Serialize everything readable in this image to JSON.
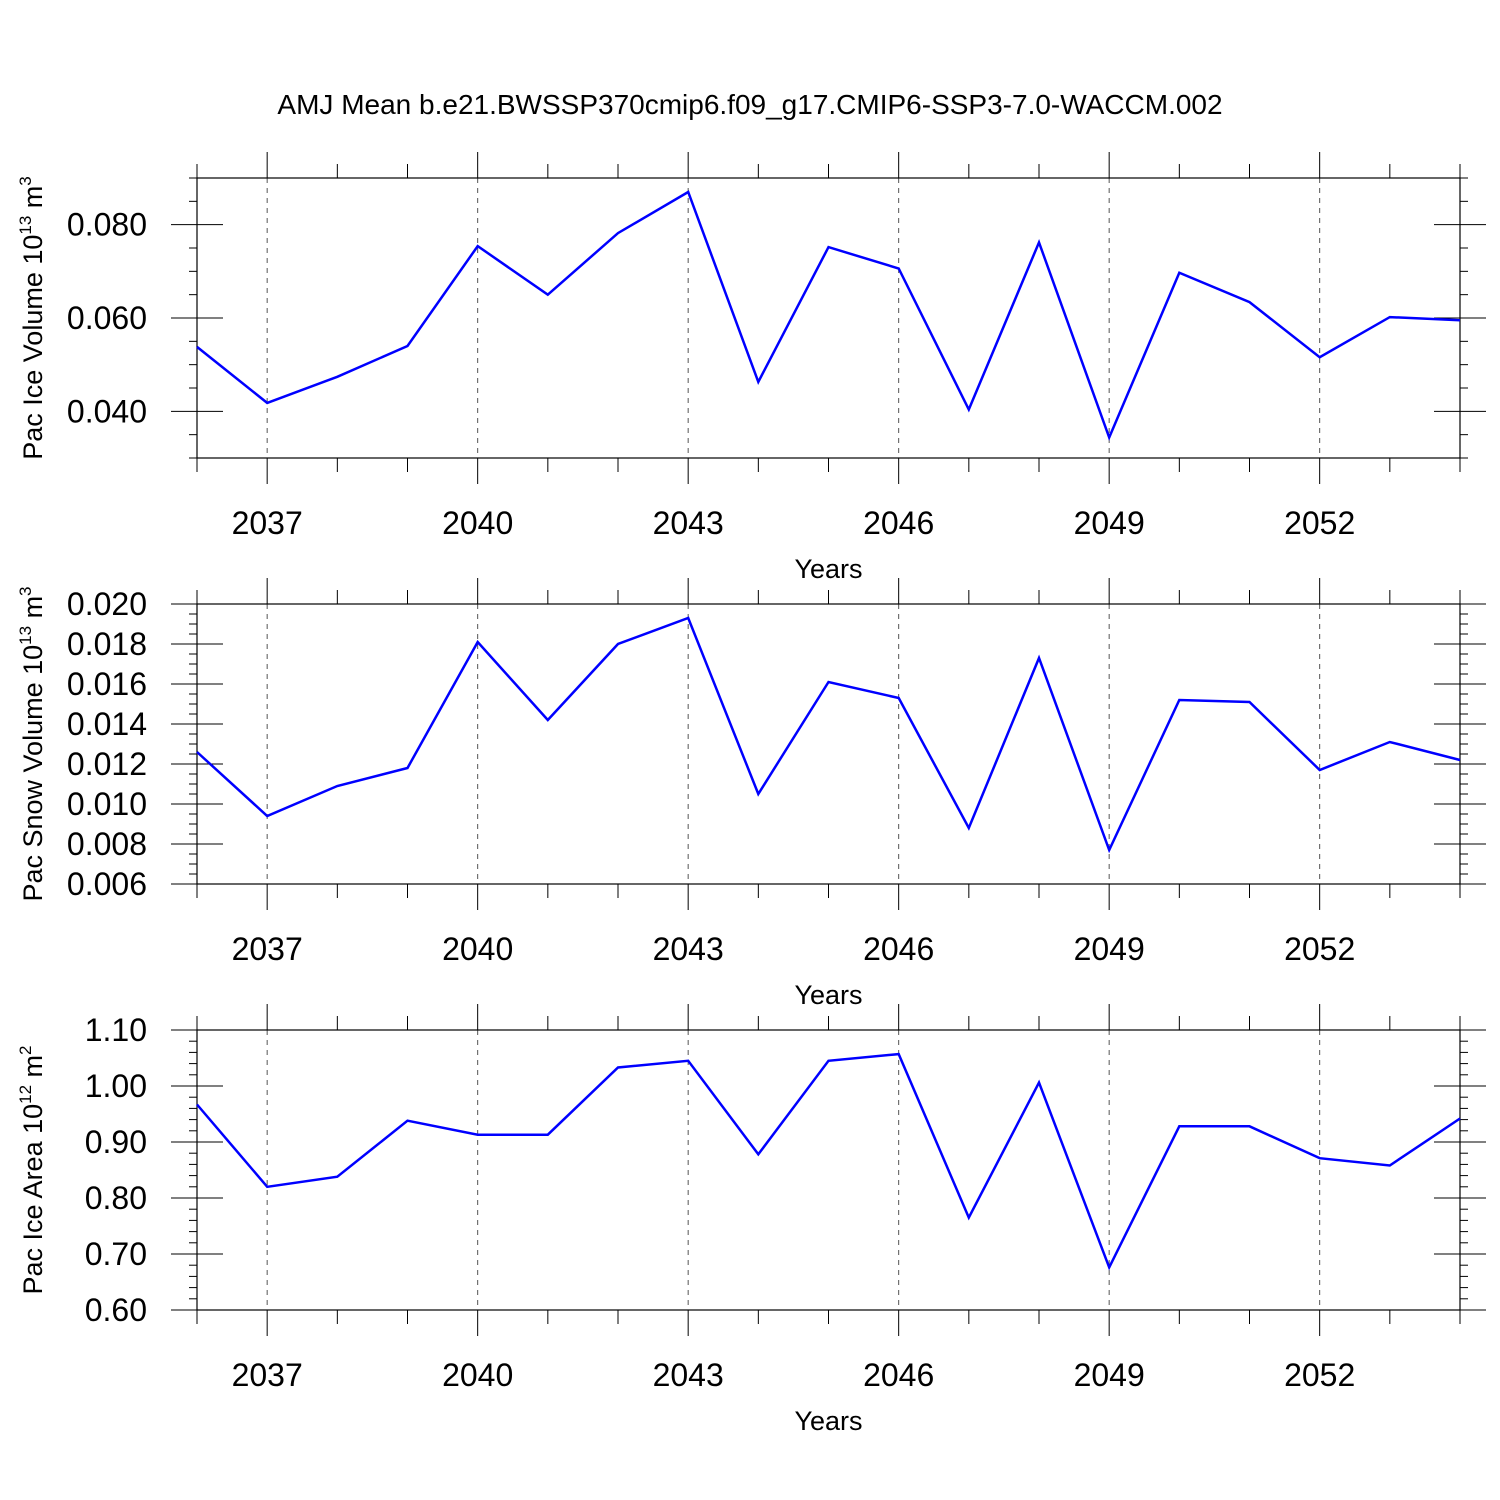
{
  "figure_title": "AMJ Mean b.e21.BWSSP370cmip6.f09_g17.CMIP6-SSP3-7.0-WACCM.002",
  "colors": {
    "line": "#0000ff",
    "axis": "#000000",
    "grid": "#555555"
  },
  "chart_data": [
    {
      "type": "line",
      "ylabel": {
        "prefix": "Pac Ice Volume 10",
        "exp": "13",
        "unit": " m",
        "unit_exp": "3"
      },
      "xlabel": "Years",
      "xlim": [
        2036,
        2054
      ],
      "ylim": [
        0.03,
        0.09
      ],
      "x_ticks": [
        2037,
        2040,
        2043,
        2046,
        2049,
        2052
      ],
      "x_tick_labels": [
        "2037",
        "2040",
        "2043",
        "2046",
        "2049",
        "2052"
      ],
      "y_ticks": [
        0.04,
        0.06,
        0.08
      ],
      "y_tick_labels": [
        "0.040",
        "0.060",
        "0.080"
      ],
      "y_minor_step": 0.005,
      "grid": "vertical dashed at major x ticks",
      "series": [
        {
          "x": [
            2036,
            2037,
            2038,
            2039,
            2040,
            2041,
            2042,
            2043,
            2044,
            2045,
            2046,
            2047,
            2048,
            2049,
            2050,
            2051,
            2052,
            2053,
            2054
          ],
          "values": [
            0.0538,
            0.0418,
            0.0474,
            0.054,
            0.0754,
            0.065,
            0.0782,
            0.087,
            0.0463,
            0.0752,
            0.0706,
            0.0404,
            0.0762,
            0.0344,
            0.0697,
            0.0634,
            0.0516,
            0.0602,
            0.0595
          ]
        }
      ]
    },
    {
      "type": "line",
      "ylabel": {
        "prefix": "Pac Snow Volume 10",
        "exp": "13",
        "unit": " m",
        "unit_exp": "3"
      },
      "xlabel": "Years",
      "xlim": [
        2036,
        2054
      ],
      "ylim": [
        0.006,
        0.02
      ],
      "x_ticks": [
        2037,
        2040,
        2043,
        2046,
        2049,
        2052
      ],
      "x_tick_labels": [
        "2037",
        "2040",
        "2043",
        "2046",
        "2049",
        "2052"
      ],
      "y_ticks": [
        0.006,
        0.008,
        0.01,
        0.012,
        0.014,
        0.016,
        0.018,
        0.02
      ],
      "y_tick_labels": [
        "0.006",
        "0.008",
        "0.010",
        "0.012",
        "0.014",
        "0.016",
        "0.018",
        "0.020"
      ],
      "y_minor_step": 0.0005,
      "grid": "vertical dashed at major x ticks",
      "series": [
        {
          "x": [
            2036,
            2037,
            2038,
            2039,
            2040,
            2041,
            2042,
            2043,
            2044,
            2045,
            2046,
            2047,
            2048,
            2049,
            2050,
            2051,
            2052,
            2053,
            2054
          ],
          "values": [
            0.0126,
            0.0094,
            0.0109,
            0.0118,
            0.0181,
            0.0142,
            0.018,
            0.0193,
            0.0105,
            0.0161,
            0.0153,
            0.0088,
            0.0173,
            0.0077,
            0.0152,
            0.0151,
            0.0117,
            0.0131,
            0.0122
          ]
        }
      ]
    },
    {
      "type": "line",
      "ylabel": {
        "prefix": "Pac Ice Area 10",
        "exp": "12",
        "unit": " m",
        "unit_exp": "2"
      },
      "xlabel": "Years",
      "xlim": [
        2036,
        2054
      ],
      "ylim": [
        0.6,
        1.1
      ],
      "x_ticks": [
        2037,
        2040,
        2043,
        2046,
        2049,
        2052
      ],
      "x_tick_labels": [
        "2037",
        "2040",
        "2043",
        "2046",
        "2049",
        "2052"
      ],
      "y_ticks": [
        0.6,
        0.7,
        0.8,
        0.9,
        1.0,
        1.1
      ],
      "y_tick_labels": [
        "0.60",
        "0.70",
        "0.80",
        "0.90",
        "1.00",
        "1.10"
      ],
      "y_minor_step": 0.02,
      "grid": "vertical dashed at major x ticks",
      "series": [
        {
          "x": [
            2036,
            2037,
            2038,
            2039,
            2040,
            2041,
            2042,
            2043,
            2044,
            2045,
            2046,
            2047,
            2048,
            2049,
            2050,
            2051,
            2052,
            2053,
            2054
          ],
          "values": [
            0.967,
            0.82,
            0.838,
            0.938,
            0.913,
            0.913,
            1.033,
            1.045,
            0.878,
            1.045,
            1.057,
            0.765,
            1.006,
            0.676,
            0.928,
            0.928,
            0.871,
            0.858,
            0.942
          ]
        }
      ]
    }
  ]
}
